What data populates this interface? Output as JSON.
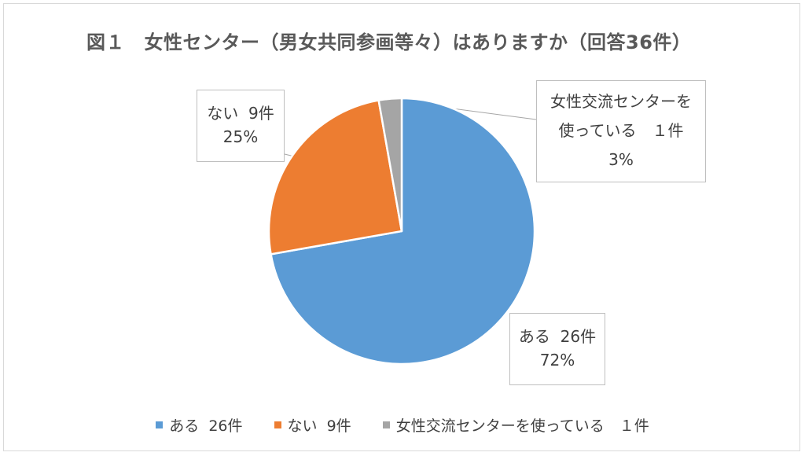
{
  "chart_data": {
    "type": "pie",
    "title": "図１　女性センター（男女共同参画等々）はありますか（回答36件）",
    "total": 36,
    "slices": [
      {
        "name": "ある",
        "count_label": "26件",
        "value": 26,
        "percent_label": "72%",
        "color": "#5B9BD5"
      },
      {
        "name": "ない",
        "count_label": "9件",
        "value": 9,
        "percent_label": "25%",
        "color": "#ED7D31"
      },
      {
        "name": "女性交流センターを使っている",
        "count_label": "１件",
        "value": 1,
        "percent_label": "3%",
        "color": "#A5A5A5"
      }
    ],
    "callouts": {
      "aru": {
        "line1": "ある  26件",
        "line2": "72%"
      },
      "nai": {
        "line1": "ない  9件",
        "line2": "25%"
      },
      "center": {
        "line1": "女性交流センターを",
        "line2": "使っている　１件",
        "line3": "3%"
      }
    },
    "legend": {
      "position": "bottom",
      "items": [
        {
          "label": "ある  26件",
          "color": "#5B9BD5"
        },
        {
          "label": "ない  9件",
          "color": "#ED7D31"
        },
        {
          "label": "女性交流センターを使っている　１件",
          "color": "#A5A5A5"
        }
      ]
    }
  }
}
